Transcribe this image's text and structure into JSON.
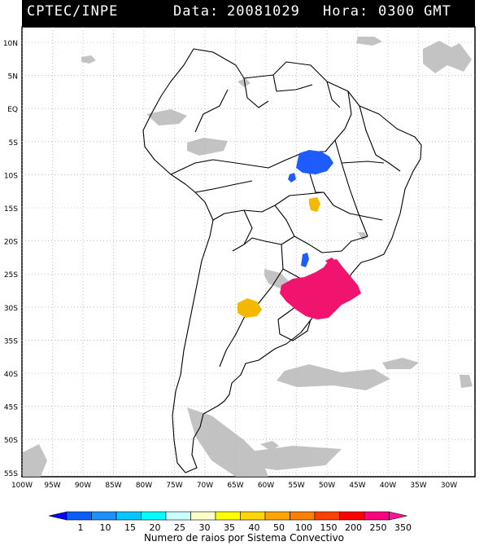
{
  "header": {
    "source": "CPTEC/INPE",
    "date_label": "Data:",
    "date_value": "20081029",
    "hour_label": "Hora:",
    "hour_value": "0300 GMT"
  },
  "map": {
    "lat_labels": [
      "10N",
      "5N",
      "EQ",
      "5S",
      "10S",
      "15S",
      "20S",
      "25S",
      "30S",
      "35S",
      "40S",
      "45S",
      "50S",
      "55S"
    ],
    "lon_labels": [
      "100W",
      "95W",
      "90W",
      "85W",
      "80W",
      "75W",
      "70W",
      "65W",
      "60W",
      "55W",
      "50W",
      "45W",
      "40W",
      "35W",
      "30W"
    ],
    "colors": {
      "coast": "#000000",
      "grid": "#9a9a9a",
      "cloud": "#b8b8b8",
      "blue": "#1f5cff",
      "yellow": "#f5b800",
      "magenta": "#f0146e"
    }
  },
  "legend": {
    "ticks": [
      "1",
      "10",
      "15",
      "20",
      "25",
      "30",
      "35",
      "40",
      "50",
      "100",
      "150",
      "200",
      "250",
      "350"
    ],
    "colors": [
      "#0000ff",
      "#0a5cff",
      "#1e90ff",
      "#00c8ff",
      "#00ffff",
      "#c8ffff",
      "#ffffc8",
      "#ffff00",
      "#ffd700",
      "#ffa500",
      "#ff8000",
      "#ff4000",
      "#ff0000",
      "#ff0080",
      "#ff1493"
    ],
    "title": "Numero de raios por Sistema Convectivo"
  }
}
